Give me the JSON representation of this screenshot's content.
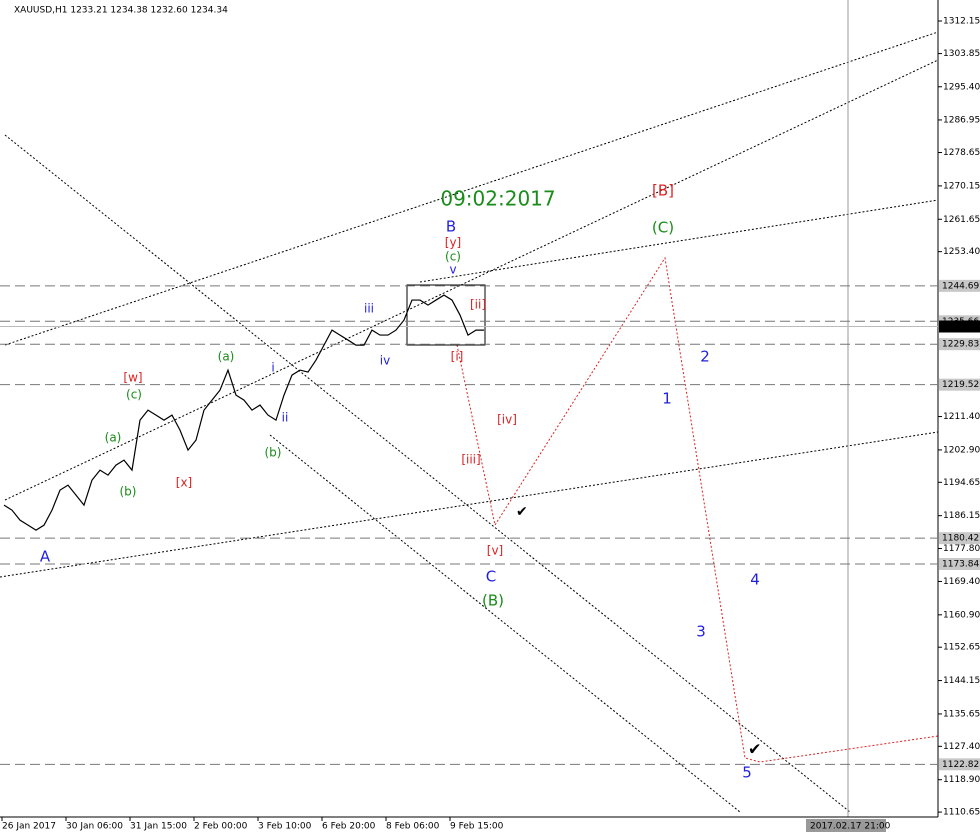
{
  "header": "XAUUSD,H1  1233.21 1234.38 1232.60 1234.34",
  "chart_data": {
    "type": "line",
    "series": [
      {
        "color": "#000000",
        "values": [
          1188.84,
          1187.56,
          1185.02,
          1183.74,
          1182.47,
          1183.74,
          1187.56,
          1192.66,
          1193.93,
          1191.39,
          1188.84,
          1195.21,
          1197.75,
          1196.48,
          1199.03,
          1200.3,
          1197.75,
          1210.49,
          1213.04,
          1211.77,
          1210.49,
          1211.77,
          1207.95,
          1202.85,
          1205.4,
          1213.04,
          1215.59,
          1218.14,
          1223.23,
          1216.86,
          1215.59,
          1213.04,
          1214.32,
          1211.77,
          1210.49,
          1216.86,
          1221.96,
          1223.23,
          1222.72,
          1225.78,
          1229.6,
          1233.42,
          1232.15,
          1230.88,
          1229.6,
          1229.6,
          1233.42,
          1232.15,
          1232.15,
          1233.42,
          1235.97,
          1241.07,
          1241.07,
          1239.79,
          1241.07,
          1242.34,
          1241.07,
          1237.25,
          1232.15,
          1233.42,
          1233.42
        ]
      }
    ],
    "ylim": [
      1109.4,
      1317.5
    ],
    "yticks": [
      1312.15,
      1303.85,
      {
        "value": 1295.4,
        "label": "1295.40"
      },
      1286.95,
      1278.65,
      1270.15,
      1261.65,
      {
        "value": 1253.4,
        "label": "1253.40"
      },
      {
        "value": 1211.4,
        "label": "1211.40"
      },
      {
        "value": 1202.9,
        "label": "1202.90"
      },
      1194.65,
      1186.15,
      {
        "value": 1177.8,
        "label": "1177.80"
      },
      {
        "value": 1169.4,
        "label": "1169.40"
      },
      {
        "value": 1160.9,
        "label": "1160.90"
      },
      1152.65,
      1144.15,
      1135.65,
      {
        "value": 1127.4,
        "label": "1127.40"
      },
      {
        "value": 1118.9,
        "label": "1118.90"
      },
      1110.65
    ],
    "level_ticks": [
      1244.69,
      1235.66,
      1229.83,
      1219.52,
      1180.42,
      1173.84,
      1122.82
    ],
    "last_price": 1234.34,
    "x_labels": [
      "26 Jan 2017",
      "30 Jan 06:00",
      "31 Jan 15:00",
      "2 Feb 00:00",
      "3 Feb 10:00",
      "6 Feb 20:00",
      "8 Feb 06:00",
      "9 Feb 15:00"
    ],
    "crosshair_time": "2017.02.17 21:00",
    "annotations": [
      {
        "text": "09:02:2017",
        "color": "#1a8c1a"
      },
      {
        "text": "B",
        "color": "#2222dd"
      },
      {
        "text": "[y]",
        "color": "#dd2222"
      },
      {
        "text": "(c)",
        "color": "#1a8c1a"
      },
      {
        "text": "v",
        "color": "#2222dd"
      },
      {
        "text": "[ii]",
        "color": "#dd2222"
      },
      {
        "text": "iii",
        "color": "#2222dd"
      },
      {
        "text": "iv",
        "color": "#2222dd"
      },
      {
        "text": "[i]",
        "color": "#dd2222"
      },
      {
        "text": "(a)",
        "color": "#1a8c1a"
      },
      {
        "text": "[w]",
        "color": "#dd2222"
      },
      {
        "text": "i",
        "color": "#2222dd"
      },
      {
        "text": "(c)",
        "color": "#1a8c1a"
      },
      {
        "text": "ii",
        "color": "#2222dd"
      },
      {
        "text": "(a)",
        "color": "#1a8c1a"
      },
      {
        "text": "(b)",
        "color": "#1a8c1a"
      },
      {
        "text": "(b)",
        "color": "#1a8c1a"
      },
      {
        "text": "[x]",
        "color": "#dd2222"
      },
      {
        "text": "A",
        "color": "#2222dd"
      },
      {
        "text": "[B]",
        "color": "#dd2222"
      },
      {
        "text": "(C)",
        "color": "#1a8c1a"
      },
      {
        "text": "2",
        "color": "#2222dd"
      },
      {
        "text": "1",
        "color": "#2222dd"
      },
      {
        "text": "[iv]",
        "color": "#dd2222"
      },
      {
        "text": "[iii]",
        "color": "#dd2222"
      },
      {
        "text": "[v]",
        "color": "#dd2222"
      },
      {
        "text": "C",
        "color": "#2222dd"
      },
      {
        "text": "(B)",
        "color": "#1a8c1a"
      },
      {
        "text": "4",
        "color": "#2222dd"
      },
      {
        "text": "3",
        "color": "#2222dd"
      },
      {
        "text": "5",
        "color": "#2222dd"
      }
    ]
  }
}
